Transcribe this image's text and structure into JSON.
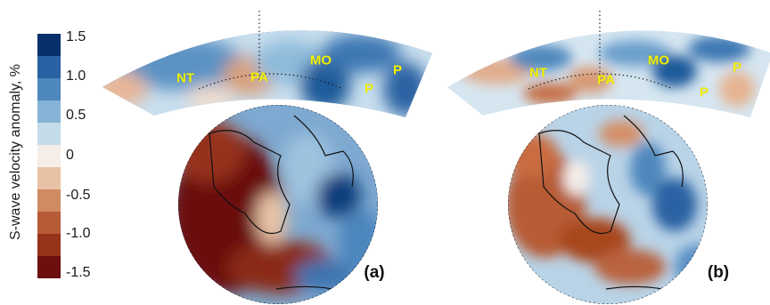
{
  "colorbar": {
    "title": "S-wave velocity anomaly, %",
    "ticks": [
      "1.5",
      "1.0",
      "0.5",
      "0",
      "-0.5",
      "-1.0",
      "-1.5"
    ],
    "range": [
      -1.5,
      1.5
    ],
    "colors": [
      "#08306b",
      "#2a62a3",
      "#4f88bd",
      "#86b4d6",
      "#c4dbe9",
      "#f4ede8",
      "#e9c2a6",
      "#d08b63",
      "#b75b36",
      "#96331b",
      "#6b0f0f"
    ]
  },
  "panels": [
    {
      "letter": "(a)",
      "plate_labels": [
        "NT",
        "PA",
        "MO",
        "P",
        "P"
      ]
    },
    {
      "letter": "(b)",
      "plate_labels": [
        "NT",
        "PA",
        "MO",
        "P",
        "P"
      ]
    }
  ],
  "label_color": "#f2f200"
}
